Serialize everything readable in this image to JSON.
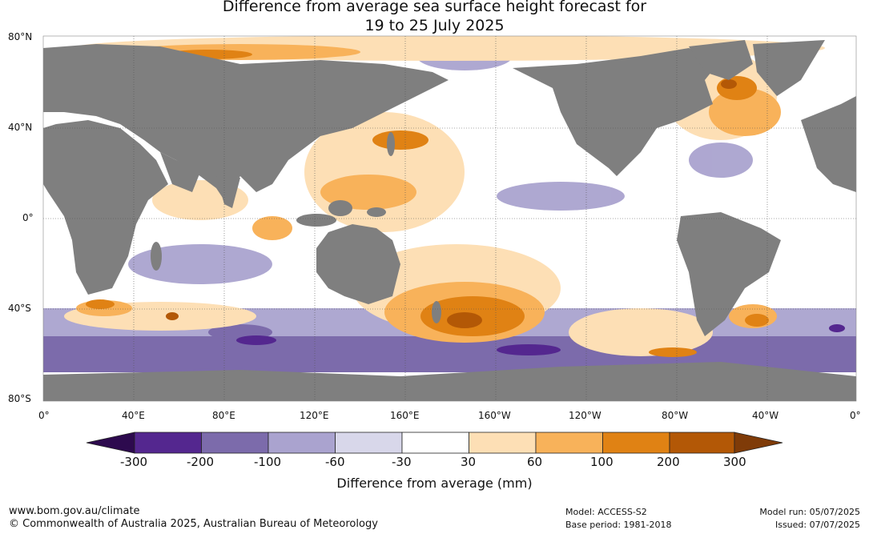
{
  "title": {
    "line1": "Difference from average sea surface height forecast for",
    "line2": "19 to 25 July 2025"
  },
  "axes": {
    "lat_labels": [
      "80°N",
      "40°N",
      "0°",
      "40°S",
      "80°S"
    ],
    "lon_labels": [
      "0°",
      "40°E",
      "80°E",
      "120°E",
      "160°E",
      "160°W",
      "120°W",
      "80°W",
      "40°W",
      "0°"
    ]
  },
  "colorbar": {
    "ticks": [
      "-300",
      "-200",
      "-100",
      "-60",
      "-30",
      "30",
      "60",
      "100",
      "200",
      "300"
    ],
    "colors": [
      "#2d0a4e",
      "#54278f",
      "#7c6bab",
      "#aaa3cf",
      "#d8d7ea",
      "#ffffff",
      "#fddfb5",
      "#f8b25a",
      "#e08214",
      "#b35806",
      "#7f3b08"
    ],
    "title": "Difference from average (mm)"
  },
  "map_colors": {
    "land": "#7f7f7f",
    "ocean_neutral": "#ffffff"
  },
  "footer": {
    "website": "www.bom.gov.au/climate",
    "copyright": "© Commonwealth of Australia 2025, Australian Bureau of Meteorology",
    "model": "Model: ACCESS-S2",
    "base_period": "Base period: 1981-2018",
    "model_run": "Model run: 05/07/2025",
    "issued": "Issued: 07/07/2025"
  }
}
